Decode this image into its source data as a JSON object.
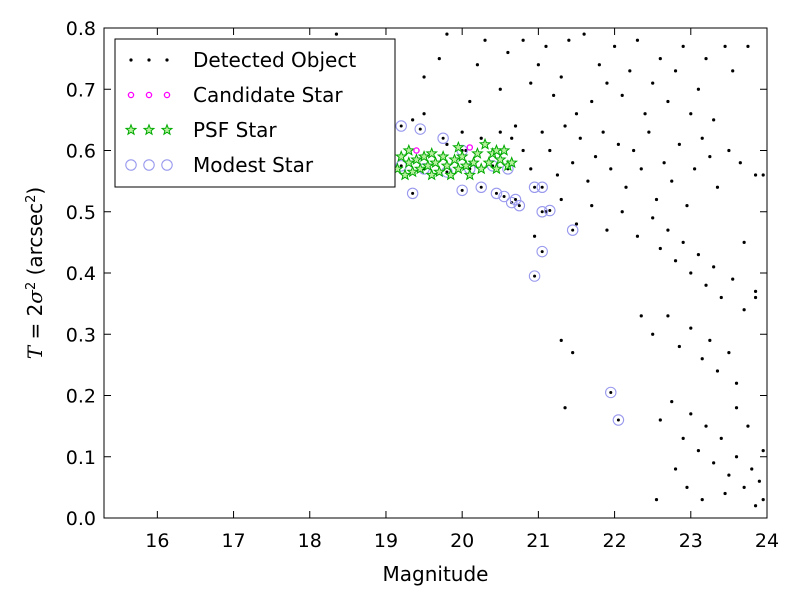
{
  "chart_data": {
    "type": "scatter",
    "xlabel": "Magnitude",
    "ylabel_parts": {
      "T": "T",
      "eq": " = 2",
      "sigma": "σ",
      "sup": "2",
      "open": " (arcsec",
      "close": ")"
    },
    "xlim": [
      15.3,
      24
    ],
    "ylim": [
      0.0,
      0.8
    ],
    "x_ticks": [
      16,
      17,
      18,
      19,
      20,
      21,
      22,
      23,
      24
    ],
    "y_ticks": [
      0.0,
      0.1,
      0.2,
      0.3,
      0.4,
      0.5,
      0.6,
      0.7,
      0.8
    ],
    "x_tick_labels": [
      "16",
      "17",
      "18",
      "19",
      "20",
      "21",
      "22",
      "23",
      "24"
    ],
    "y_tick_labels": [
      "0.0",
      "0.1",
      "0.2",
      "0.3",
      "0.4",
      "0.5",
      "0.6",
      "0.7",
      "0.8"
    ],
    "grid": false,
    "legend_position": "top-left",
    "series": [
      {
        "name": "Detected Object",
        "marker": "dot",
        "color": "#000000",
        "points": [
          [
            18.35,
            0.79
          ],
          [
            19.5,
            0.72
          ],
          [
            19.7,
            0.75
          ],
          [
            19.8,
            0.79
          ],
          [
            20.1,
            0.68
          ],
          [
            20.2,
            0.74
          ],
          [
            20.3,
            0.78
          ],
          [
            20.5,
            0.7
          ],
          [
            20.6,
            0.76
          ],
          [
            20.7,
            0.64
          ],
          [
            20.8,
            0.78
          ],
          [
            20.9,
            0.71
          ],
          [
            19.35,
            0.65
          ],
          [
            19.5,
            0.66
          ],
          [
            19.8,
            0.61
          ],
          [
            20.0,
            0.63
          ],
          [
            20.05,
            0.6
          ],
          [
            20.25,
            0.62
          ],
          [
            20.5,
            0.63
          ],
          [
            20.65,
            0.62
          ],
          [
            20.8,
            0.6
          ],
          [
            20.9,
            0.57
          ],
          [
            21.0,
            0.74
          ],
          [
            21.1,
            0.77
          ],
          [
            21.2,
            0.69
          ],
          [
            21.3,
            0.72
          ],
          [
            21.4,
            0.78
          ],
          [
            21.5,
            0.66
          ],
          [
            21.6,
            0.79
          ],
          [
            21.7,
            0.68
          ],
          [
            21.8,
            0.74
          ],
          [
            21.9,
            0.71
          ],
          [
            22.0,
            0.77
          ],
          [
            22.1,
            0.69
          ],
          [
            22.2,
            0.73
          ],
          [
            22.3,
            0.78
          ],
          [
            22.4,
            0.66
          ],
          [
            22.5,
            0.71
          ],
          [
            22.6,
            0.75
          ],
          [
            22.7,
            0.68
          ],
          [
            22.8,
            0.73
          ],
          [
            22.9,
            0.77
          ],
          [
            23.0,
            0.66
          ],
          [
            23.1,
            0.7
          ],
          [
            23.2,
            0.75
          ],
          [
            23.3,
            0.65
          ],
          [
            23.45,
            0.77
          ],
          [
            23.55,
            0.73
          ],
          [
            23.75,
            0.77
          ],
          [
            21.05,
            0.63
          ],
          [
            21.15,
            0.6
          ],
          [
            21.25,
            0.56
          ],
          [
            21.35,
            0.64
          ],
          [
            21.45,
            0.58
          ],
          [
            21.55,
            0.62
          ],
          [
            21.65,
            0.55
          ],
          [
            21.75,
            0.59
          ],
          [
            21.85,
            0.63
          ],
          [
            21.95,
            0.57
          ],
          [
            22.05,
            0.61
          ],
          [
            22.15,
            0.54
          ],
          [
            22.25,
            0.6
          ],
          [
            22.35,
            0.57
          ],
          [
            22.45,
            0.63
          ],
          [
            22.55,
            0.52
          ],
          [
            22.65,
            0.58
          ],
          [
            22.75,
            0.55
          ],
          [
            22.85,
            0.61
          ],
          [
            22.95,
            0.51
          ],
          [
            23.05,
            0.57
          ],
          [
            23.15,
            0.62
          ],
          [
            23.25,
            0.59
          ],
          [
            23.35,
            0.54
          ],
          [
            23.5,
            0.6
          ],
          [
            23.65,
            0.58
          ],
          [
            23.85,
            0.56
          ],
          [
            21.1,
            0.5
          ],
          [
            21.3,
            0.52
          ],
          [
            21.5,
            0.48
          ],
          [
            21.7,
            0.51
          ],
          [
            21.9,
            0.47
          ],
          [
            22.1,
            0.5
          ],
          [
            22.3,
            0.46
          ],
          [
            22.5,
            0.49
          ],
          [
            22.6,
            0.44
          ],
          [
            22.7,
            0.47
          ],
          [
            22.8,
            0.42
          ],
          [
            22.9,
            0.45
          ],
          [
            23.0,
            0.4
          ],
          [
            23.1,
            0.43
          ],
          [
            23.2,
            0.38
          ],
          [
            23.3,
            0.41
          ],
          [
            23.4,
            0.36
          ],
          [
            23.55,
            0.39
          ],
          [
            23.7,
            0.34
          ],
          [
            23.85,
            0.37
          ],
          [
            20.95,
            0.46
          ],
          [
            21.3,
            0.29
          ],
          [
            21.45,
            0.27
          ],
          [
            21.35,
            0.18
          ],
          [
            22.35,
            0.33
          ],
          [
            22.5,
            0.3
          ],
          [
            22.7,
            0.33
          ],
          [
            22.85,
            0.28
          ],
          [
            23.0,
            0.31
          ],
          [
            23.15,
            0.26
          ],
          [
            23.25,
            0.29
          ],
          [
            23.35,
            0.24
          ],
          [
            23.5,
            0.27
          ],
          [
            23.6,
            0.22
          ],
          [
            22.6,
            0.16
          ],
          [
            22.75,
            0.19
          ],
          [
            22.9,
            0.13
          ],
          [
            23.0,
            0.17
          ],
          [
            23.1,
            0.11
          ],
          [
            23.2,
            0.15
          ],
          [
            23.3,
            0.09
          ],
          [
            23.4,
            0.13
          ],
          [
            23.5,
            0.07
          ],
          [
            23.6,
            0.1
          ],
          [
            23.7,
            0.05
          ],
          [
            23.8,
            0.08
          ],
          [
            22.55,
            0.03
          ],
          [
            22.8,
            0.08
          ],
          [
            22.95,
            0.05
          ],
          [
            23.15,
            0.03
          ],
          [
            23.45,
            0.04
          ],
          [
            23.85,
            0.02
          ],
          [
            23.95,
            0.03
          ],
          [
            23.9,
            0.06
          ],
          [
            23.95,
            0.11
          ],
          [
            23.75,
            0.15
          ],
          [
            23.85,
            0.36
          ],
          [
            23.95,
            0.56
          ],
          [
            23.7,
            0.45
          ],
          [
            23.6,
            0.18
          ]
        ]
      },
      {
        "name": "Candidate Star",
        "marker": "circle",
        "color": "#ff00ff",
        "points": [
          [
            20.1,
            0.605
          ],
          [
            19.4,
            0.6
          ]
        ]
      },
      {
        "name": "PSF Star",
        "marker": "star",
        "color": "#00aa00",
        "points": [
          [
            19.15,
            0.57
          ],
          [
            19.2,
            0.59
          ],
          [
            19.25,
            0.56
          ],
          [
            19.3,
            0.58
          ],
          [
            19.35,
            0.565
          ],
          [
            19.4,
            0.585
          ],
          [
            19.45,
            0.57
          ],
          [
            19.5,
            0.59
          ],
          [
            19.55,
            0.575
          ],
          [
            19.6,
            0.56
          ],
          [
            19.65,
            0.58
          ],
          [
            19.7,
            0.565
          ],
          [
            19.75,
            0.59
          ],
          [
            19.8,
            0.575
          ],
          [
            19.85,
            0.56
          ],
          [
            19.9,
            0.585
          ],
          [
            19.95,
            0.57
          ],
          [
            20.0,
            0.59
          ],
          [
            20.05,
            0.575
          ],
          [
            20.1,
            0.56
          ],
          [
            20.15,
            0.58
          ],
          [
            20.2,
            0.595
          ],
          [
            20.25,
            0.57
          ],
          [
            20.3,
            0.61
          ],
          [
            20.35,
            0.58
          ],
          [
            20.4,
            0.595
          ],
          [
            20.45,
            0.57
          ],
          [
            20.5,
            0.585
          ],
          [
            20.55,
            0.6
          ],
          [
            20.6,
            0.575
          ],
          [
            20.65,
            0.58
          ],
          [
            19.3,
            0.6
          ],
          [
            19.6,
            0.595
          ],
          [
            19.95,
            0.605
          ],
          [
            20.45,
            0.6
          ]
        ]
      },
      {
        "name": "Modest Star",
        "marker": "open-circle",
        "color": "#9999ee",
        "points": [
          [
            19.2,
            0.64
          ],
          [
            19.45,
            0.635
          ],
          [
            19.75,
            0.62
          ],
          [
            20.0,
            0.6
          ],
          [
            19.35,
            0.53
          ],
          [
            20.0,
            0.535
          ],
          [
            20.25,
            0.54
          ],
          [
            20.45,
            0.53
          ],
          [
            20.55,
            0.525
          ],
          [
            20.65,
            0.515
          ],
          [
            20.7,
            0.52
          ],
          [
            20.75,
            0.51
          ],
          [
            20.95,
            0.54
          ],
          [
            21.05,
            0.54
          ],
          [
            21.05,
            0.5
          ],
          [
            21.15,
            0.502
          ],
          [
            21.45,
            0.47
          ],
          [
            21.05,
            0.435
          ],
          [
            20.95,
            0.395
          ],
          [
            21.95,
            0.205
          ],
          [
            22.05,
            0.16
          ],
          [
            19.2,
            0.575
          ],
          [
            19.5,
            0.57
          ],
          [
            19.8,
            0.565
          ],
          [
            20.1,
            0.57
          ],
          [
            20.4,
            0.575
          ],
          [
            20.6,
            0.57
          ]
        ]
      }
    ]
  }
}
